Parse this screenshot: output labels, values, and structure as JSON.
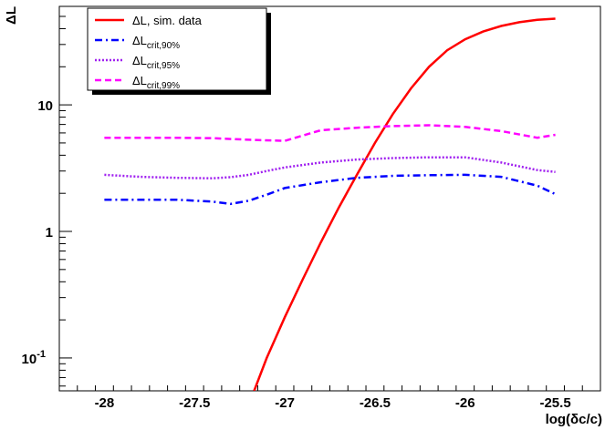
{
  "chart_data": {
    "type": "line",
    "xlabel": "log(δc/c)",
    "ylabel": "ΔL",
    "xlim": [
      -28.25,
      -25.25
    ],
    "ylim": [
      0.055,
      60
    ],
    "y_scale": "log",
    "grid": false,
    "legend_position": "top-left",
    "x_ticks": [
      {
        "value": -28,
        "label": "-28"
      },
      {
        "value": -27.5,
        "label": "-27.5"
      },
      {
        "value": -27,
        "label": "-27"
      },
      {
        "value": -26.5,
        "label": "-26.5"
      },
      {
        "value": -26,
        "label": "-26"
      },
      {
        "value": -25.5,
        "label": "-25.5"
      }
    ],
    "y_ticks": [
      {
        "value": 0.1,
        "label_base": "10",
        "label_exp": "-1"
      },
      {
        "value": 1,
        "label_base": "1",
        "label_exp": ""
      },
      {
        "value": 10,
        "label_base": "10",
        "label_exp": ""
      }
    ],
    "series": [
      {
        "name": "ΔL, sim. data",
        "legend_main": "ΔL, sim. data",
        "legend_sub": "",
        "color": "#ff0000",
        "style": "solid",
        "x": [
          -27.17,
          -27.1,
          -27.0,
          -26.9,
          -26.8,
          -26.7,
          -26.6,
          -26.5,
          -26.4,
          -26.3,
          -26.2,
          -26.1,
          -26.0,
          -25.9,
          -25.8,
          -25.7,
          -25.6,
          -25.5
        ],
        "y": [
          0.055,
          0.1,
          0.21,
          0.42,
          0.82,
          1.55,
          2.8,
          5.0,
          8.5,
          13.5,
          20,
          27,
          33,
          38,
          42,
          45,
          47,
          48
        ]
      },
      {
        "name": "ΔLcrit,90%",
        "legend_main": "ΔL",
        "legend_sub": "crit,90%",
        "color": "#0000ff",
        "style": "dashdot",
        "x": [
          -28.0,
          -27.8,
          -27.6,
          -27.5,
          -27.4,
          -27.3,
          -27.2,
          -27.1,
          -27.0,
          -26.8,
          -26.6,
          -26.4,
          -26.2,
          -26.0,
          -25.8,
          -25.6,
          -25.5
        ],
        "y": [
          1.78,
          1.78,
          1.78,
          1.75,
          1.72,
          1.65,
          1.75,
          1.95,
          2.2,
          2.45,
          2.65,
          2.75,
          2.78,
          2.8,
          2.7,
          2.3,
          1.97
        ]
      },
      {
        "name": "ΔLcrit,95%",
        "legend_main": "ΔL",
        "legend_sub": "crit,95%",
        "color": "#a020f0",
        "style": "dotted",
        "x": [
          -28.0,
          -27.8,
          -27.6,
          -27.4,
          -27.3,
          -27.2,
          -27.1,
          -27.0,
          -26.8,
          -26.6,
          -26.4,
          -26.2,
          -26.0,
          -25.8,
          -25.6,
          -25.5
        ],
        "y": [
          2.8,
          2.7,
          2.65,
          2.63,
          2.68,
          2.8,
          3.0,
          3.2,
          3.5,
          3.7,
          3.8,
          3.85,
          3.85,
          3.5,
          3.05,
          2.95
        ]
      },
      {
        "name": "ΔLcrit,99%",
        "legend_main": "ΔL",
        "legend_sub": "crit,99%",
        "color": "#ff00ff",
        "style": "dashed",
        "x": [
          -28.0,
          -27.8,
          -27.6,
          -27.4,
          -27.2,
          -27.0,
          -26.8,
          -26.6,
          -26.4,
          -26.2,
          -26.0,
          -25.8,
          -25.6,
          -25.5
        ],
        "y": [
          5.5,
          5.5,
          5.5,
          5.45,
          5.3,
          5.2,
          6.3,
          6.6,
          6.8,
          6.9,
          6.7,
          6.2,
          5.5,
          5.8
        ]
      }
    ]
  }
}
